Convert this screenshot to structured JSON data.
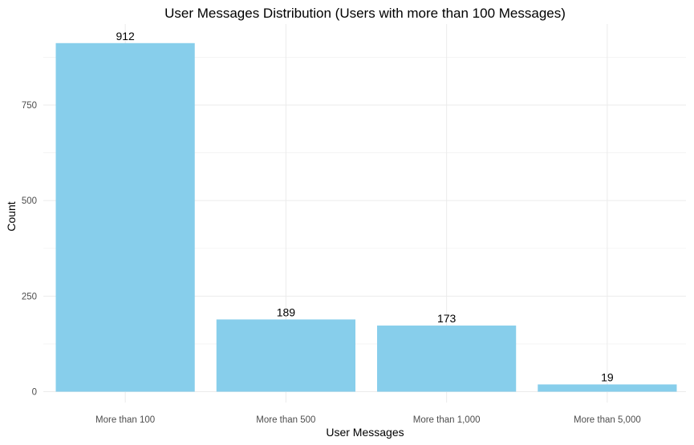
{
  "chart_data": {
    "type": "bar",
    "title": "User Messages Distribution (Users with more than 100 Messages)",
    "xlabel": "User Messages",
    "ylabel": "Count",
    "categories": [
      "More than 100",
      "More than 500",
      "More than 1,000",
      "More than 5,000"
    ],
    "values": [
      912,
      189,
      173,
      19
    ],
    "data_labels": [
      "912",
      "189",
      "173",
      "19"
    ],
    "y_ticks": [
      0,
      250,
      500,
      750
    ],
    "y_tick_labels": [
      "0",
      "250",
      "500",
      "750"
    ],
    "ylim": [
      0,
      957.6
    ],
    "grid": true,
    "legend": "none",
    "bar_color": "#87CEEB"
  }
}
